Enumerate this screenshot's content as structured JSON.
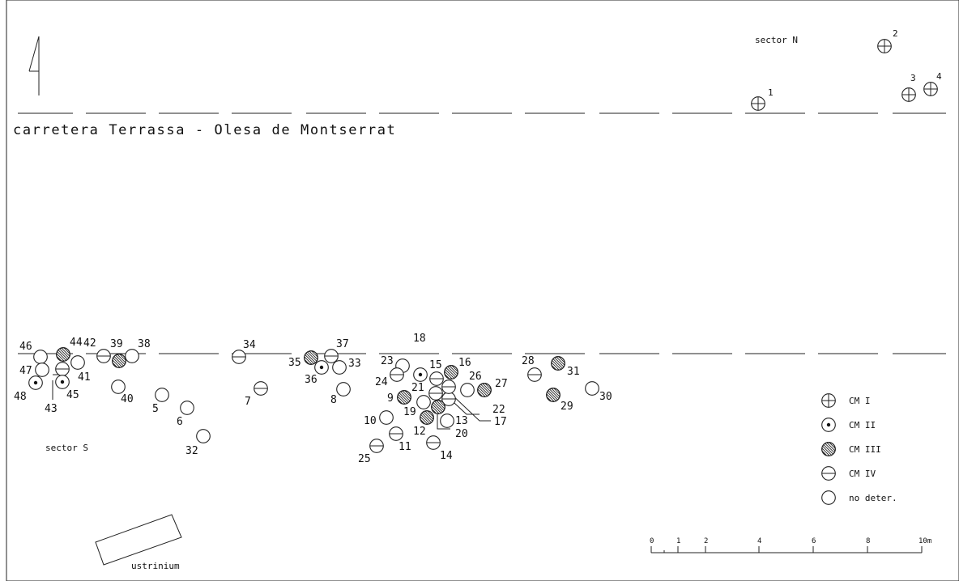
{
  "road_label": "carretera Terrassa - Olesa de Montserrat",
  "sector_north_label": "sector N",
  "sector_south_label": "sector S",
  "ustrinium_label": "ustrinium",
  "legend": [
    {
      "type": "CM1",
      "label": "CM I"
    },
    {
      "type": "CM2",
      "label": "CM II"
    },
    {
      "type": "CM3",
      "label": "CM III"
    },
    {
      "type": "CM4",
      "label": "CM IV"
    },
    {
      "type": "ND",
      "label": "no deter."
    }
  ],
  "scale_bar": {
    "ticks": [
      "0",
      "1",
      "2",
      "4",
      "6",
      "8",
      "10m"
    ]
  },
  "tombs": [
    {
      "id": "1",
      "type": "CM1"
    },
    {
      "id": "2",
      "type": "CM1"
    },
    {
      "id": "3",
      "type": "CM1"
    },
    {
      "id": "4",
      "type": "CM1"
    },
    {
      "id": "5",
      "type": "ND"
    },
    {
      "id": "6",
      "type": "ND"
    },
    {
      "id": "7",
      "type": "CM4"
    },
    {
      "id": "8",
      "type": "ND"
    },
    {
      "id": "9",
      "type": "CM3"
    },
    {
      "id": "10",
      "type": "ND"
    },
    {
      "id": "11",
      "type": "CM4"
    },
    {
      "id": "12",
      "type": "CM3"
    },
    {
      "id": "13",
      "type": "ND"
    },
    {
      "id": "14",
      "type": "CM4"
    },
    {
      "id": "15",
      "type": "CM4"
    },
    {
      "id": "16",
      "type": "CM3"
    },
    {
      "id": "17",
      "type": "CM4"
    },
    {
      "id": "18",
      "type": "CM2"
    },
    {
      "id": "19",
      "type": "ND"
    },
    {
      "id": "20",
      "type": "CM3"
    },
    {
      "id": "21",
      "type": "CM4"
    },
    {
      "id": "22",
      "type": "CM4"
    },
    {
      "id": "23",
      "type": "ND"
    },
    {
      "id": "24",
      "type": "CM4"
    },
    {
      "id": "25",
      "type": "CM4"
    },
    {
      "id": "26",
      "type": "ND"
    },
    {
      "id": "27",
      "type": "CM3"
    },
    {
      "id": "28",
      "type": "CM4"
    },
    {
      "id": "29",
      "type": "CM3"
    },
    {
      "id": "30",
      "type": "ND"
    },
    {
      "id": "31",
      "type": "CM3"
    },
    {
      "id": "32",
      "type": "ND"
    },
    {
      "id": "33",
      "type": "ND"
    },
    {
      "id": "34",
      "type": "CM4"
    },
    {
      "id": "35",
      "type": "CM3"
    },
    {
      "id": "36",
      "type": "CM2"
    },
    {
      "id": "37",
      "type": "CM4"
    },
    {
      "id": "38",
      "type": "ND"
    },
    {
      "id": "39",
      "type": "CM3"
    },
    {
      "id": "40",
      "type": "ND"
    },
    {
      "id": "41",
      "type": "ND"
    },
    {
      "id": "42",
      "type": "CM4"
    },
    {
      "id": "43",
      "type": "CM4"
    },
    {
      "id": "44",
      "type": "CM3"
    },
    {
      "id": "45",
      "type": "CM2"
    },
    {
      "id": "46",
      "type": "ND"
    },
    {
      "id": "47",
      "type": "ND"
    },
    {
      "id": "48",
      "type": "CM2"
    }
  ]
}
